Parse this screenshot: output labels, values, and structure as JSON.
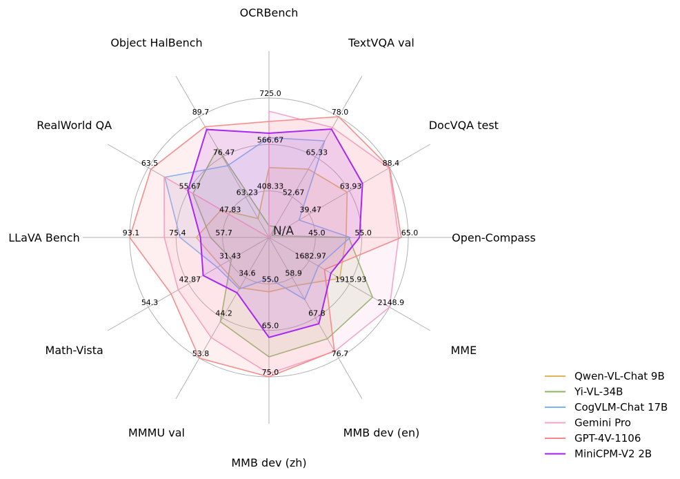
{
  "chart_data": {
    "type": "radar",
    "center_label": "N/A",
    "axes": [
      {
        "name": "OCRBench",
        "range": [
          250,
          725
        ],
        "ticks": [
          "408.33",
          "566.67",
          "725.0"
        ]
      },
      {
        "name": "TextVQA val",
        "range": [
          40,
          78
        ],
        "ticks": [
          "52.67",
          "65.33",
          "78.0"
        ]
      },
      {
        "name": "DocVQA test",
        "range": [
          15,
          88.4
        ],
        "ticks": [
          "39.47",
          "63.93",
          "88.4"
        ]
      },
      {
        "name": "Open-Compass",
        "range": [
          35,
          65
        ],
        "ticks": [
          "45.0",
          "55.0",
          "65.0"
        ]
      },
      {
        "name": "MME",
        "range": [
          1450,
          2148.9
        ],
        "ticks": [
          "1682.97",
          "1915.93",
          "2148.9"
        ]
      },
      {
        "name": "MMB dev (en)",
        "range": [
          50,
          76.7
        ],
        "ticks": [
          "58.9",
          "67.8",
          "76.7"
        ]
      },
      {
        "name": "MMB dev (zh)",
        "range": [
          45,
          75
        ],
        "ticks": [
          "55.0",
          "65.0",
          "75.0"
        ]
      },
      {
        "name": "MMMU val",
        "range": [
          25,
          53.8
        ],
        "ticks": [
          "34.6",
          "44.2",
          "53.8"
        ]
      },
      {
        "name": "Math-Vista",
        "range": [
          20,
          54.3
        ],
        "ticks": [
          "31.43",
          "42.87",
          "54.3"
        ]
      },
      {
        "name": "LLaVA Bench",
        "range": [
          40,
          93.1
        ],
        "ticks": [
          "57.7",
          "75.4",
          "93.1"
        ]
      },
      {
        "name": "RealWorld QA",
        "range": [
          40,
          63.5
        ],
        "ticks": [
          "47.83",
          "55.67",
          "63.5"
        ]
      },
      {
        "name": "Object HalBench",
        "range": [
          50,
          89.7
        ],
        "ticks": [
          "63.23",
          "76.47",
          "89.7"
        ]
      }
    ],
    "series": [
      {
        "name": "Qwen-VL-Chat 9B",
        "color": "#e3b35a",
        "values": [
          488,
          61.5,
          62.6,
          51.6,
          1860.0,
          60.6,
          56.7,
          37.0,
          33.8,
          67.7,
          49.3,
          56.2
        ]
      },
      {
        "name": "Yi-VL-34B",
        "color": "#8cb464",
        "values": [
          290,
          43.4,
          16.9,
          52.2,
          2050.2,
          72.4,
          70.7,
          45.1,
          30.7,
          62.3,
          54.8,
          79.3
        ]
      },
      {
        "name": "CogVLM-Chat 17B",
        "color": "#78b4f5",
        "values": [
          590,
          70.4,
          33.3,
          52.5,
          1736.6,
          63.7,
          53.8,
          37.3,
          34.7,
          73.9,
          60.3,
          73.6
        ]
      },
      {
        "name": "Gemini Pro",
        "color": "#f5a0c8",
        "values": [
          680,
          74.6,
          88.1,
          62.9,
          2148.9,
          75.2,
          74.3,
          48.9,
          45.8,
          79.9,
          60.4,
          null
        ]
      },
      {
        "name": "GPT-4V-1106",
        "color": "#f78787",
        "values": [
          645,
          78.0,
          88.4,
          63.5,
          1771.5,
          75.1,
          75.0,
          53.8,
          47.8,
          93.1,
          63.0,
          86.4
        ]
      },
      {
        "name": "MiniCPM-V2 2B",
        "color": "#a41ef2",
        "values": [
          605,
          74.1,
          71.9,
          54.5,
          1808.6,
          69.1,
          66.5,
          38.2,
          38.7,
          66.1,
          55.8,
          85.5
        ]
      }
    ],
    "grid": true,
    "legend": "bottom-right"
  }
}
